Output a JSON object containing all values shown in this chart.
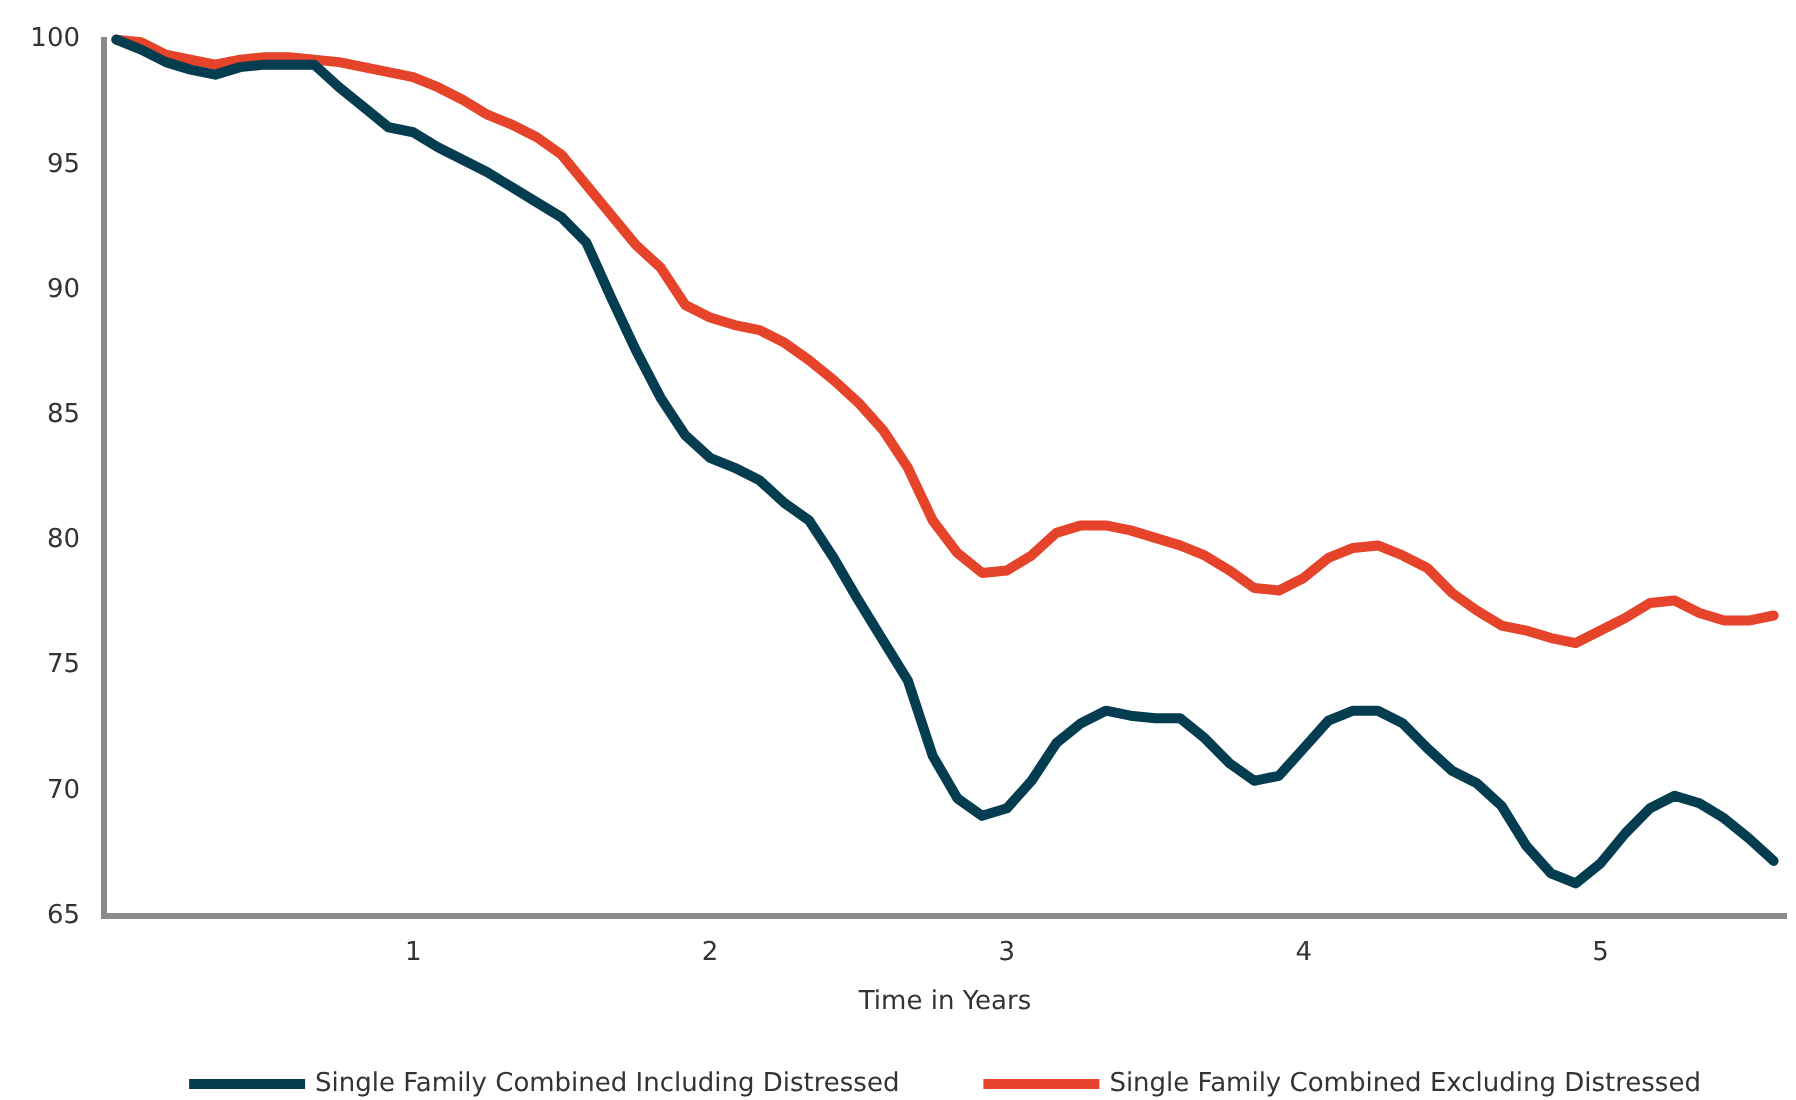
{
  "chart_data": {
    "type": "line",
    "xlabel": "Time in Years",
    "categories": [
      null,
      null,
      null,
      null,
      null,
      null,
      null,
      null,
      null,
      null,
      null,
      null,
      "1",
      null,
      null,
      null,
      null,
      null,
      null,
      null,
      null,
      null,
      null,
      null,
      "2",
      null,
      null,
      null,
      null,
      null,
      null,
      null,
      null,
      null,
      null,
      null,
      "3",
      null,
      null,
      null,
      null,
      null,
      null,
      null,
      null,
      null,
      null,
      null,
      "4",
      null,
      null,
      null,
      null,
      null,
      null,
      null,
      null,
      null,
      null,
      null,
      "5",
      null,
      null,
      null,
      null,
      null,
      null,
      null
    ],
    "ylim": [
      65,
      100
    ],
    "yticks": [
      65,
      70,
      75,
      80,
      85,
      90,
      95,
      100
    ],
    "grid": false,
    "legend": "bottom",
    "line_style": "solid",
    "series": [
      {
        "name": "Single Family Combined Including Distressed",
        "color": "#053d50",
        "values": [
          100,
          99.6,
          99.1,
          98.8,
          98.6,
          98.9,
          99.0,
          99.0,
          99.0,
          98.1,
          97.3,
          96.5,
          96.3,
          95.7,
          95.2,
          94.7,
          94.1,
          93.5,
          92.9,
          91.9,
          89.7,
          87.6,
          85.7,
          84.2,
          83.3,
          82.9,
          82.4,
          81.5,
          80.8,
          79.3,
          77.6,
          76.0,
          74.4,
          71.4,
          69.7,
          69.0,
          69.3,
          70.4,
          71.9,
          72.7,
          73.2,
          73.0,
          72.9,
          72.9,
          72.1,
          71.1,
          70.4,
          70.6,
          71.7,
          72.8,
          73.2,
          73.2,
          72.7,
          71.7,
          70.8,
          70.3,
          69.4,
          67.8,
          66.7,
          66.3,
          67.1,
          68.3,
          69.3,
          69.8,
          69.5,
          68.9,
          68.1,
          67.2
        ]
      },
      {
        "name": "Single Family Combined Excluding Distressed",
        "color": "#e5432a",
        "values": [
          100,
          99.9,
          99.4,
          99.2,
          99.0,
          99.2,
          99.3,
          99.3,
          99.2,
          99.1,
          98.9,
          98.7,
          98.5,
          98.1,
          97.6,
          97.0,
          96.6,
          96.1,
          95.4,
          94.2,
          93.0,
          91.8,
          90.9,
          89.4,
          88.9,
          88.6,
          88.4,
          87.9,
          87.2,
          86.4,
          85.5,
          84.4,
          82.9,
          80.8,
          79.5,
          78.7,
          78.8,
          79.4,
          80.3,
          80.6,
          80.6,
          80.4,
          80.1,
          79.8,
          79.4,
          78.8,
          78.1,
          78.0,
          78.5,
          79.3,
          79.7,
          79.8,
          79.4,
          78.9,
          77.9,
          77.2,
          76.6,
          76.4,
          76.1,
          75.9,
          76.4,
          76.9,
          77.5,
          77.6,
          77.1,
          76.8,
          76.8,
          77.0
        ]
      }
    ]
  }
}
